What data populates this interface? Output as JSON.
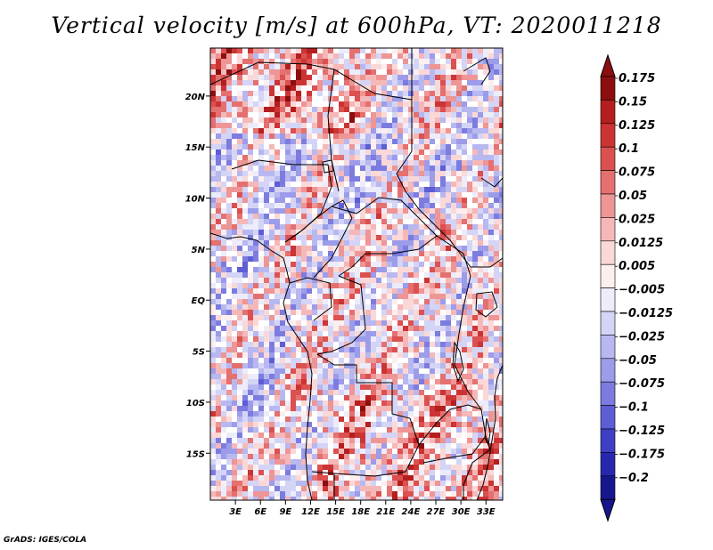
{
  "title": "Vertical velocity [m/s] at 600hPa, VT: 2020011218",
  "credit": "GrADS: IGES/COLA",
  "colors": {
    "reds": [
      "#8b0f0f",
      "#b51e1e",
      "#cc3434",
      "#dc5050",
      "#e47070",
      "#ee9595",
      "#f5b8b8",
      "#fad8d8",
      "#fdefef"
    ],
    "blues": [
      "#ececfb",
      "#d4d4f6",
      "#b8b8f0",
      "#9c9cea",
      "#7c7ce0",
      "#5d5dd6",
      "#3f3fc6",
      "#2828ae",
      "#16168f"
    ],
    "white": "#ffffff"
  },
  "map": {
    "y_ticks": [
      {
        "label": "20N",
        "lat": 20
      },
      {
        "label": "15N",
        "lat": 15
      },
      {
        "label": "10N",
        "lat": 10
      },
      {
        "label": "5N",
        "lat": 5
      },
      {
        "label": "EQ",
        "lat": 0
      },
      {
        "label": "5S",
        "lat": -5
      },
      {
        "label": "10S",
        "lat": -10
      },
      {
        "label": "15S",
        "lat": -15
      }
    ],
    "x_ticks": [
      {
        "label": "3E",
        "lon": 3
      },
      {
        "label": "6E",
        "lon": 6
      },
      {
        "label": "9E",
        "lon": 9
      },
      {
        "label": "12E",
        "lon": 12
      },
      {
        "label": "15E",
        "lon": 15
      },
      {
        "label": "18E",
        "lon": 18
      },
      {
        "label": "21E",
        "lon": 21
      },
      {
        "label": "24E",
        "lon": 24
      },
      {
        "label": "27E",
        "lon": 27
      },
      {
        "label": "30E",
        "lon": 30
      },
      {
        "label": "33E",
        "lon": 33
      }
    ]
  },
  "colorbar": {
    "labels": [
      "0.175",
      "0.15",
      "0.125",
      "0.1",
      "0.075",
      "0.05",
      "0.025",
      "0.0125",
      "0.005",
      "−0.005",
      "−0.0125",
      "−0.025",
      "−0.05",
      "−0.075",
      "−0.1",
      "−0.125",
      "−0.175",
      "−0.2"
    ]
  }
}
